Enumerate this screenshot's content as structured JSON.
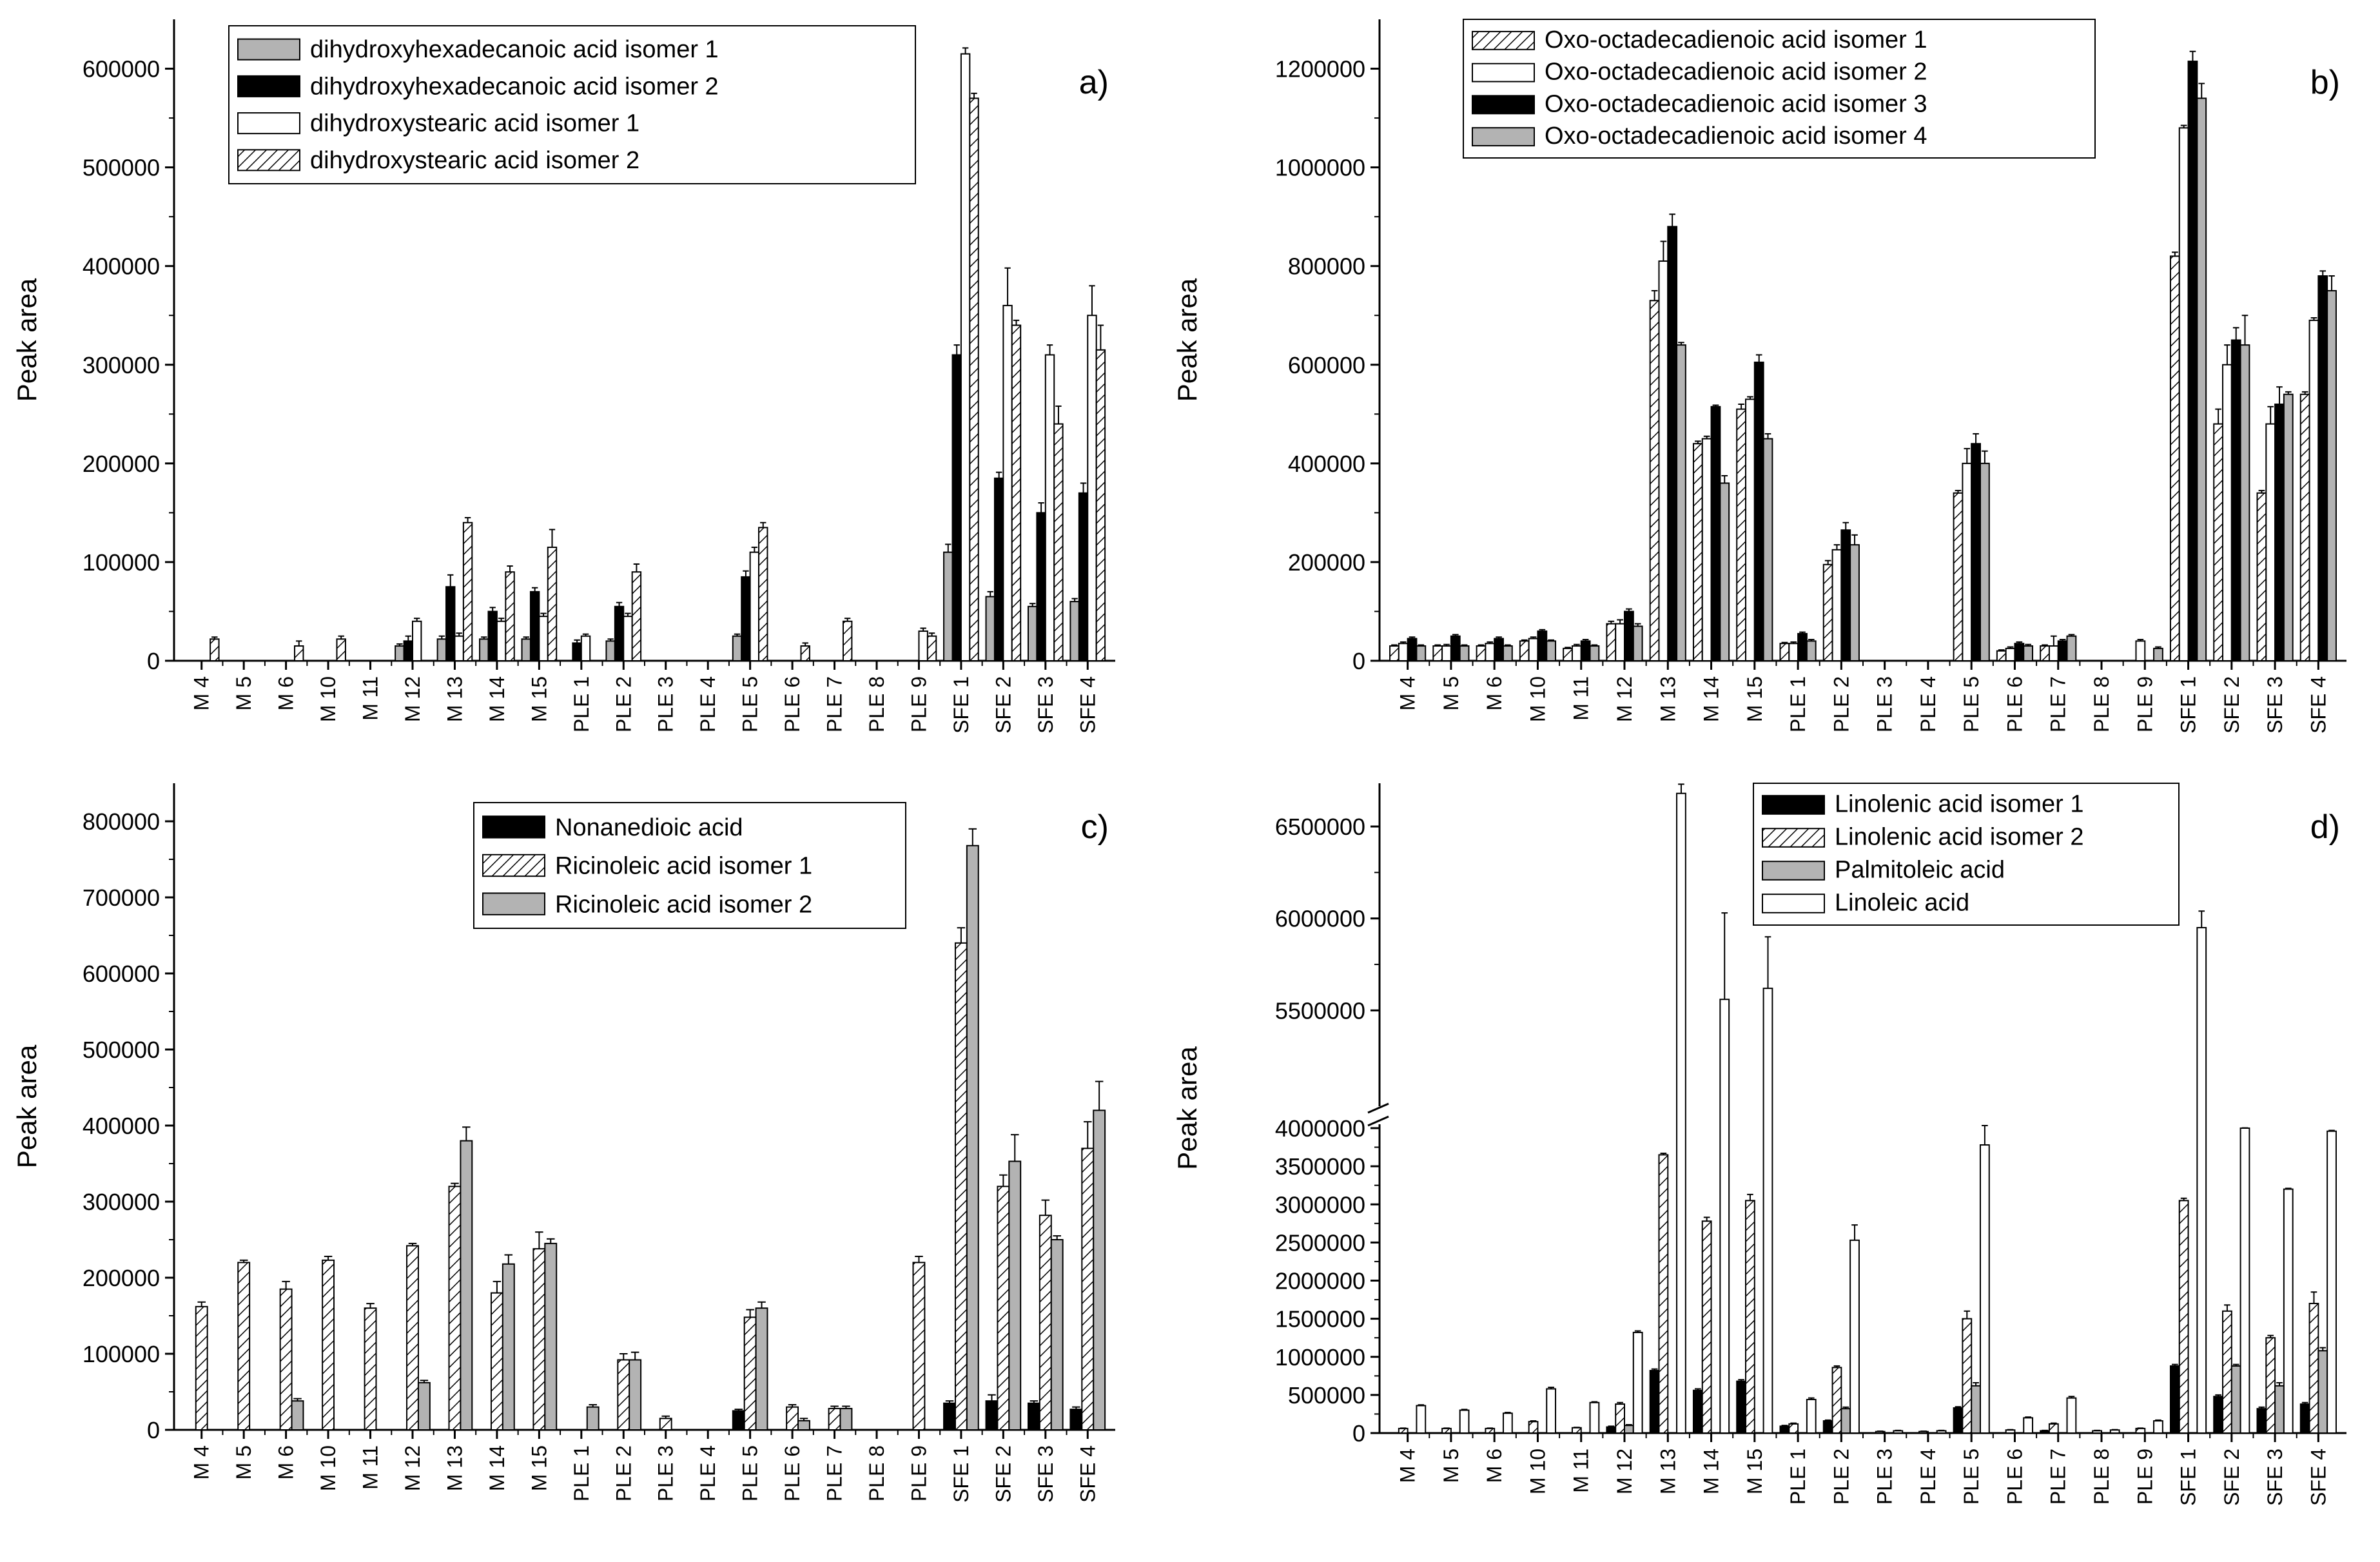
{
  "charts": [
    {
      "panel_label": "a)",
      "type": "bar",
      "ylabel": "Peak area",
      "ylim": [
        0,
        650000
      ],
      "yticks": [
        0,
        100000,
        200000,
        300000,
        400000,
        500000,
        600000
      ],
      "categories": [
        "M 4",
        "M 5",
        "M 6",
        "M 10",
        "M 11",
        "M 12",
        "M 13",
        "M 14",
        "M 15",
        "PLE 1",
        "PLE 2",
        "PLE 3",
        "PLE 4",
        "PLE 5",
        "PLE 6",
        "PLE 7",
        "PLE 8",
        "PLE 9",
        "SFE 1",
        "SFE 2",
        "SFE 3",
        "SFE 4"
      ],
      "series": [
        {
          "name": "dihydroxyhexadecanoic acid isomer 1",
          "style": "gray",
          "values": [
            0,
            0,
            0,
            0,
            0,
            15000,
            22000,
            22000,
            22000,
            0,
            20000,
            0,
            0,
            25000,
            0,
            0,
            0,
            0,
            110000,
            65000,
            55000,
            60000
          ],
          "errors": [
            0,
            0,
            0,
            0,
            0,
            2000,
            3000,
            2000,
            2000,
            0,
            2000,
            0,
            0,
            2000,
            0,
            0,
            0,
            0,
            8000,
            5000,
            3000,
            3000
          ]
        },
        {
          "name": "dihydroxyhexadecanoic acid isomer 2",
          "style": "black",
          "values": [
            0,
            0,
            0,
            0,
            0,
            20000,
            75000,
            50000,
            70000,
            18000,
            55000,
            0,
            0,
            85000,
            0,
            0,
            0,
            0,
            310000,
            185000,
            150000,
            170000
          ],
          "errors": [
            0,
            0,
            0,
            0,
            0,
            5000,
            12000,
            4000,
            4000,
            3000,
            4000,
            0,
            0,
            6000,
            0,
            0,
            0,
            0,
            10000,
            6000,
            10000,
            10000
          ]
        },
        {
          "name": "dihydroxystearic acid isomer 1",
          "style": "white",
          "values": [
            0,
            0,
            0,
            0,
            0,
            40000,
            25000,
            40000,
            45000,
            25000,
            45000,
            0,
            0,
            110000,
            0,
            0,
            0,
            30000,
            615000,
            360000,
            310000,
            350000
          ],
          "errors": [
            0,
            0,
            0,
            0,
            0,
            3000,
            3000,
            3000,
            3000,
            2000,
            3000,
            0,
            0,
            5000,
            0,
            0,
            0,
            3000,
            6000,
            38000,
            10000,
            30000
          ],
          "plot_values": [
            0,
            0,
            0,
            0,
            0,
            40000,
            25000,
            40000,
            45000,
            25000,
            45000,
            0,
            0,
            110000,
            0,
            0,
            0,
            30000,
            615000,
            360000,
            310000,
            350000
          ]
        },
        {
          "name": "dihydroxystearic acid isomer 2",
          "style": "hatch",
          "values": [
            22000,
            0,
            15000,
            22000,
            0,
            0,
            140000,
            90000,
            115000,
            0,
            90000,
            0,
            0,
            135000,
            15000,
            40000,
            0,
            25000,
            570000,
            340000,
            240000,
            315000
          ],
          "errors": [
            2000,
            0,
            5000,
            3000,
            0,
            0,
            5000,
            6000,
            18000,
            0,
            8000,
            0,
            0,
            5000,
            3000,
            3000,
            0,
            3000,
            5000,
            5000,
            18000,
            25000
          ]
        }
      ],
      "legend": [
        "dihydroxyhexadecanoic acid isomer 1",
        "dihydroxyhexadecanoic acid isomer 2",
        "dihydroxystearic acid isomer 1",
        "dihydroxystearic acid isomer 2"
      ]
    },
    {
      "panel_label": "b)",
      "type": "bar",
      "ylabel": "Peak area",
      "ylim": [
        0,
        1300000
      ],
      "yticks": [
        0,
        200000,
        400000,
        600000,
        800000,
        1000000,
        1200000
      ],
      "categories": [
        "M 4",
        "M 5",
        "M 6",
        "M 10",
        "M 11",
        "M 12",
        "M 13",
        "M 14",
        "M 15",
        "PLE 1",
        "PLE 2",
        "PLE 3",
        "PLE 4",
        "PLE 5",
        "PLE 6",
        "PLE 7",
        "PLE 8",
        "PLE 9",
        "SFE 1",
        "SFE 2",
        "SFE 3",
        "SFE 4"
      ],
      "series": [
        {
          "name": "Oxo-octadecadienoic acid isomer 1",
          "style": "hatch",
          "values": [
            30000,
            30000,
            30000,
            40000,
            25000,
            75000,
            730000,
            440000,
            510000,
            35000,
            195000,
            0,
            0,
            340000,
            20000,
            30000,
            0,
            0,
            820000,
            480000,
            340000,
            540000
          ],
          "errors": [
            2000,
            2000,
            2000,
            2000,
            2000,
            5000,
            20000,
            5000,
            10000,
            2000,
            8000,
            0,
            0,
            5000,
            2000,
            2000,
            0,
            0,
            8000,
            30000,
            5000,
            5000
          ]
        },
        {
          "name": "Oxo-octadecadienoic acid isomer 2",
          "style": "white",
          "values": [
            35000,
            30000,
            35000,
            45000,
            30000,
            75000,
            810000,
            450000,
            530000,
            35000,
            225000,
            0,
            0,
            400000,
            25000,
            30000,
            0,
            40000,
            1080000,
            600000,
            480000,
            690000
          ],
          "errors": [
            3000,
            3000,
            3000,
            3000,
            3000,
            8000,
            40000,
            5000,
            5000,
            3000,
            10000,
            0,
            0,
            30000,
            3000,
            20000,
            0,
            3000,
            5000,
            40000,
            35000,
            5000
          ]
        },
        {
          "name": "Oxo-octadecadienoic acid isomer 3",
          "style": "black",
          "values": [
            45000,
            50000,
            45000,
            60000,
            40000,
            100000,
            880000,
            515000,
            605000,
            55000,
            265000,
            0,
            0,
            440000,
            35000,
            40000,
            0,
            0,
            1215000,
            650000,
            520000,
            780000
          ],
          "errors": [
            3000,
            3000,
            3000,
            3000,
            3000,
            5000,
            25000,
            3000,
            15000,
            3000,
            15000,
            0,
            0,
            20000,
            3000,
            3000,
            0,
            0,
            20000,
            25000,
            35000,
            10000
          ]
        },
        {
          "name": "Oxo-octadecadienoic acid isomer 4",
          "style": "gray",
          "values": [
            30000,
            30000,
            30000,
            40000,
            30000,
            70000,
            640000,
            360000,
            450000,
            40000,
            235000,
            0,
            0,
            400000,
            30000,
            50000,
            0,
            25000,
            1140000,
            640000,
            540000,
            750000
          ],
          "errors": [
            2000,
            2000,
            2000,
            2000,
            2000,
            5000,
            5000,
            15000,
            10000,
            3000,
            20000,
            0,
            0,
            25000,
            3000,
            3000,
            0,
            3000,
            30000,
            60000,
            5000,
            30000
          ]
        }
      ],
      "legend": [
        "Oxo-octadecadienoic acid isomer 1",
        "Oxo-octadecadienoic acid isomer 2",
        "Oxo-octadecadienoic acid isomer 3",
        "Oxo-octadecadienoic acid isomer 4"
      ]
    },
    {
      "panel_label": "c)",
      "type": "bar",
      "ylabel": "Peak area",
      "ylim": [
        0,
        850000
      ],
      "yticks": [
        0,
        100000,
        200000,
        300000,
        400000,
        500000,
        600000,
        700000,
        800000
      ],
      "categories": [
        "M 4",
        "M 5",
        "M 6",
        "M 10",
        "M 11",
        "M 12",
        "M 13",
        "M 14",
        "M 15",
        "PLE 1",
        "PLE 2",
        "PLE 3",
        "PLE 4",
        "PLE 5",
        "PLE 6",
        "PLE 7",
        "PLE 8",
        "PLE 9",
        "SFE 1",
        "SFE 2",
        "SFE 3",
        "SFE 4"
      ],
      "series": [
        {
          "name": "Nonanedioic acid",
          "style": "black",
          "values": [
            0,
            0,
            0,
            0,
            0,
            0,
            0,
            0,
            0,
            0,
            0,
            0,
            0,
            25000,
            0,
            0,
            0,
            0,
            35000,
            38000,
            35000,
            27000
          ],
          "errors": [
            0,
            0,
            0,
            0,
            0,
            0,
            0,
            0,
            0,
            0,
            0,
            0,
            0,
            2000,
            0,
            0,
            0,
            0,
            3000,
            8000,
            3000,
            3000
          ]
        },
        {
          "name": "Ricinoleic acid isomer 1",
          "style": "hatch",
          "values": [
            162000,
            220000,
            185000,
            223000,
            160000,
            242000,
            320000,
            180000,
            238000,
            0,
            92000,
            15000,
            0,
            148000,
            30000,
            28000,
            0,
            220000,
            640000,
            320000,
            282000,
            370000
          ],
          "errors": [
            6000,
            3000,
            10000,
            5000,
            6000,
            3000,
            4000,
            15000,
            22000,
            0,
            8000,
            3000,
            0,
            10000,
            3000,
            3000,
            0,
            8000,
            20000,
            15000,
            20000,
            35000
          ]
        },
        {
          "name": "Ricinoleic acid isomer 2",
          "style": "gray",
          "values": [
            0,
            0,
            38000,
            0,
            0,
            62000,
            380000,
            218000,
            245000,
            30000,
            92000,
            0,
            0,
            160000,
            12000,
            28000,
            0,
            0,
            768000,
            353000,
            250000,
            420000
          ],
          "errors": [
            0,
            0,
            3000,
            0,
            0,
            3000,
            18000,
            12000,
            6000,
            3000,
            10000,
            0,
            0,
            8000,
            3000,
            3000,
            0,
            0,
            22000,
            35000,
            5000,
            38000
          ]
        }
      ],
      "legend": [
        "Nonanedioic acid",
        "Ricinoleic acid isomer 1",
        "Ricinoleic acid isomer 2"
      ]
    },
    {
      "panel_label": "d)",
      "type": "bar",
      "ylabel": "Peak area",
      "axis_break": {
        "lower": [
          0,
          4000000
        ],
        "upper": [
          5000000,
          6700000
        ]
      },
      "yticks_lower": [
        0,
        500000,
        1000000,
        1500000,
        2000000,
        2500000,
        3000000,
        3500000,
        4000000
      ],
      "yticks_upper": [
        5500000,
        6000000,
        6500000
      ],
      "categories": [
        "M 4",
        "M 5",
        "M 6",
        "M 10",
        "M 11",
        "M 12",
        "M 13",
        "M 14",
        "M 15",
        "PLE 1",
        "PLE 2",
        "PLE 3",
        "PLE 4",
        "PLE 5",
        "PLE 6",
        "PLE 7",
        "PLE 8",
        "PLE 9",
        "SFE 1",
        "SFE 2",
        "SFE 3",
        "SFE 4"
      ],
      "series": [
        {
          "name": "Linolenic acid isomer 1",
          "style": "black",
          "values": [
            0,
            0,
            0,
            0,
            0,
            80000,
            820000,
            560000,
            680000,
            90000,
            160000,
            0,
            0,
            330000,
            0,
            30000,
            0,
            0,
            880000,
            480000,
            320000,
            380000
          ],
          "errors": [
            0,
            0,
            0,
            0,
            0,
            10000,
            20000,
            20000,
            20000,
            10000,
            10000,
            0,
            0,
            15000,
            0,
            5000,
            0,
            0,
            20000,
            20000,
            20000,
            20000
          ]
        },
        {
          "name": "Linolenic acid isomer 2",
          "style": "hatch",
          "values": [
            60000,
            60000,
            60000,
            150000,
            70000,
            380000,
            3650000,
            2780000,
            3050000,
            120000,
            860000,
            20000,
            20000,
            1500000,
            40000,
            120000,
            30000,
            60000,
            3050000,
            1600000,
            1250000,
            1700000
          ],
          "errors": [
            5000,
            5000,
            5000,
            10000,
            5000,
            20000,
            20000,
            50000,
            80000,
            10000,
            20000,
            5000,
            5000,
            100000,
            5000,
            10000,
            5000,
            5000,
            30000,
            80000,
            30000,
            150000
          ]
        },
        {
          "name": "Palmitoleic acid",
          "style": "gray",
          "values": [
            0,
            0,
            0,
            0,
            0,
            100000,
            0,
            0,
            0,
            0,
            320000,
            0,
            0,
            620000,
            0,
            0,
            0,
            0,
            0,
            880000,
            620000,
            1080000
          ],
          "errors": [
            0,
            0,
            0,
            0,
            0,
            10000,
            0,
            0,
            0,
            0,
            20000,
            0,
            0,
            40000,
            0,
            0,
            0,
            0,
            0,
            20000,
            40000,
            40000
          ]
        },
        {
          "name": "Linoleic acid",
          "style": "white",
          "values": [
            360000,
            300000,
            260000,
            580000,
            400000,
            1320000,
            6680000,
            5560000,
            5620000,
            440000,
            2530000,
            30000,
            30000,
            3780000,
            200000,
            460000,
            40000,
            160000,
            5950000,
            4000000,
            3200000,
            3960000
          ],
          "errors": [
            10000,
            10000,
            10000,
            20000,
            10000,
            20000,
            50000,
            470000,
            280000,
            20000,
            200000,
            5000,
            5000,
            320000,
            10000,
            20000,
            5000,
            10000,
            90000,
            10000,
            10000,
            10000
          ]
        }
      ],
      "legend": [
        "Linolenic acid isomer 1",
        "Linolenic acid isomer 2",
        "Palmitoleic acid",
        "Linoleic acid"
      ]
    }
  ]
}
